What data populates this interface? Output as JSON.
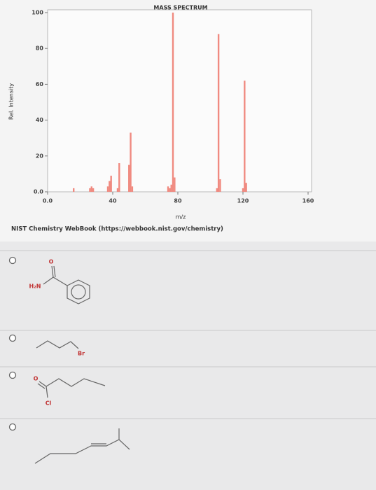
{
  "chart_data": {
    "type": "bar",
    "title": "MASS SPECTRUM",
    "x_label": "m/z",
    "y_label": "Rel. Intensity",
    "source": "NIST Chemistry WebBook (https://webbook.nist.gov/chemistry)",
    "x": [
      16,
      26,
      27,
      28,
      37,
      38,
      39,
      43,
      44,
      50,
      51,
      52,
      74,
      75,
      76,
      77,
      78,
      104,
      105,
      106,
      120,
      121,
      122
    ],
    "values": [
      2,
      2,
      3,
      2,
      3,
      6,
      9,
      2,
      16,
      15,
      33,
      3,
      3,
      2,
      4,
      100,
      8,
      2,
      88,
      7,
      2,
      62,
      5
    ],
    "color": "#f08a80",
    "xlim": [
      0,
      160
    ],
    "ylim": [
      0,
      100
    ],
    "xticks": [
      {
        "value": 0,
        "label": "0.0"
      },
      40,
      80,
      120,
      160
    ],
    "yticks": [
      {
        "value": 0,
        "label": "0.0"
      },
      20,
      40,
      60,
      80,
      100
    ]
  },
  "options": [
    {
      "atoms": [
        "O",
        "H₂N"
      ]
    },
    {
      "atoms": [
        "Br"
      ]
    },
    {
      "atoms": [
        "O",
        "Cl"
      ]
    }
  ]
}
